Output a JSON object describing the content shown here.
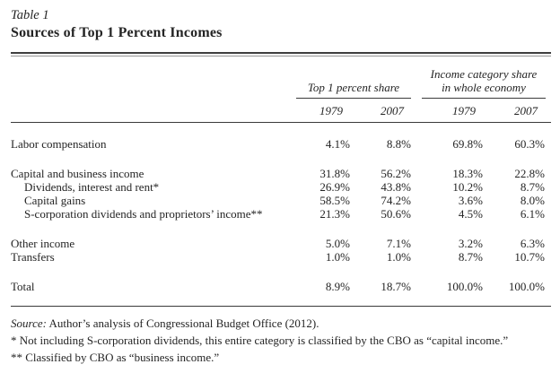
{
  "page": {
    "table_label": "Table 1",
    "title": "Sources of Top 1 Percent Incomes"
  },
  "header": {
    "group1": "Top 1 percent share",
    "group2_line1": "Income category share",
    "group2_line2": "in whole economy",
    "years": [
      "1979",
      "2007",
      "1979",
      "2007"
    ]
  },
  "rows": [
    {
      "label": "Labor compensation",
      "indent": 0,
      "space_before": false,
      "values": [
        "4.1%",
        "8.8%",
        "69.8%",
        "60.3%"
      ]
    },
    {
      "label": "Capital and business income",
      "indent": 0,
      "space_before": true,
      "values": [
        "31.8%",
        "56.2%",
        "18.3%",
        "22.8%"
      ]
    },
    {
      "label": "Dividends, interest and rent*",
      "indent": 1,
      "space_before": false,
      "values": [
        "26.9%",
        "43.8%",
        "10.2%",
        "8.7%"
      ]
    },
    {
      "label": "Capital gains",
      "indent": 1,
      "space_before": false,
      "values": [
        "58.5%",
        "74.2%",
        "3.6%",
        "8.0%"
      ]
    },
    {
      "label": "S-corporation dividends and proprietors’ income**",
      "indent": 1,
      "space_before": false,
      "values": [
        "21.3%",
        "50.6%",
        "4.5%",
        "6.1%"
      ]
    },
    {
      "label": "Other income",
      "indent": 0,
      "space_before": true,
      "values": [
        "5.0%",
        "7.1%",
        "3.2%",
        "6.3%"
      ]
    },
    {
      "label": "Transfers",
      "indent": 0,
      "space_before": false,
      "values": [
        "1.0%",
        "1.0%",
        "8.7%",
        "10.7%"
      ]
    },
    {
      "label": "Total",
      "indent": 0,
      "space_before": true,
      "values": [
        "8.9%",
        "18.7%",
        "100.0%",
        "100.0%"
      ]
    }
  ],
  "notes": {
    "source_label": "Source:",
    "source_text": "Author’s analysis of Congressional Budget Office (2012).",
    "footnote1": "* Not including S-corporation dividends, this entire category is classified by the CBO as “capital income.”",
    "footnote2": "** Classified by CBO as “business income.”"
  },
  "colors": {
    "text": "#242424",
    "rule": "#3a3a3a"
  }
}
